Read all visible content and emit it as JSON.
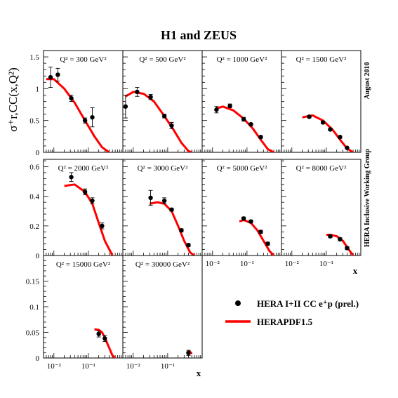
{
  "figure": {
    "title": "H1 and ZEUS",
    "side_note_top": "August 2010",
    "side_note_bottom": "HERA Inclusive Working Group",
    "ylabel": "σ⁺r,CC(x,Q²)",
    "xlabel": "x",
    "colors": {
      "data": "#000000",
      "fit": "#ff0000",
      "frame": "#000000"
    }
  },
  "legend": {
    "data_label": "HERA I+II CC e⁺p (prel.)",
    "fit_label": "HERAPDF1.5",
    "placement": "bottom-right"
  },
  "chart_data": [
    {
      "type": "scatter",
      "title": "Q² = 300 GeV²",
      "xscale": "log",
      "xlim": [
        0.005,
        1
      ],
      "ylim": [
        0,
        1.6
      ],
      "yticks": [
        "0",
        "0.5",
        "1",
        "1.5"
      ],
      "xticks": [],
      "series": [
        {
          "name": "HERA I+II CC e⁺p (prel.)",
          "x": [
            0.008,
            0.013,
            0.032,
            0.08,
            0.13
          ],
          "y": [
            1.18,
            1.22,
            0.85,
            0.5,
            0.55
          ],
          "err": [
            0.16,
            0.1,
            0.05,
            0.04,
            0.15
          ]
        },
        {
          "name": "HERAPDF1.5",
          "x": [
            0.006,
            0.01,
            0.02,
            0.04,
            0.08,
            0.15,
            0.25,
            0.4
          ],
          "y": [
            1.15,
            1.15,
            1.0,
            0.78,
            0.5,
            0.25,
            0.08,
            0.0
          ]
        }
      ]
    },
    {
      "type": "scatter",
      "title": "Q² = 500 GeV²",
      "xscale": "log",
      "xlim": [
        0.005,
        1
      ],
      "ylim": [
        0,
        1.6
      ],
      "yticks": [],
      "xticks": [],
      "series": [
        {
          "name": "HERA I+II CC e⁺p (prel.)",
          "x": [
            0.006,
            0.013,
            0.032,
            0.08,
            0.13
          ],
          "y": [
            0.72,
            0.95,
            0.87,
            0.57,
            0.42
          ],
          "err": [
            0.18,
            0.07,
            0.04,
            0.03,
            0.05
          ]
        },
        {
          "name": "HERAPDF1.5",
          "x": [
            0.006,
            0.01,
            0.02,
            0.04,
            0.08,
            0.15,
            0.25,
            0.4,
            0.5
          ],
          "y": [
            0.88,
            0.95,
            0.92,
            0.8,
            0.57,
            0.35,
            0.15,
            0.02,
            0.0
          ]
        }
      ]
    },
    {
      "type": "scatter",
      "title": "Q² = 1000 GeV²",
      "xscale": "log",
      "xlim": [
        0.005,
        1
      ],
      "ylim": [
        0,
        1.6
      ],
      "yticks": [],
      "xticks": [],
      "series": [
        {
          "name": "HERA I+II CC e⁺p (prel.)",
          "x": [
            0.013,
            0.032,
            0.08,
            0.13,
            0.25
          ],
          "y": [
            0.67,
            0.73,
            0.52,
            0.44,
            0.24
          ],
          "err": [
            0.05,
            0.03,
            0.03,
            0.02,
            0.02
          ]
        },
        {
          "name": "HERAPDF1.5",
          "x": [
            0.013,
            0.02,
            0.04,
            0.08,
            0.15,
            0.25,
            0.4,
            0.6
          ],
          "y": [
            0.69,
            0.72,
            0.66,
            0.53,
            0.37,
            0.2,
            0.05,
            0.0
          ]
        }
      ]
    },
    {
      "type": "scatter",
      "title": "Q² = 1500 GeV²",
      "xscale": "log",
      "xlim": [
        0.005,
        1
      ],
      "ylim": [
        0,
        1.6
      ],
      "yticks": [],
      "xticks": [],
      "series": [
        {
          "name": "HERA I+II CC e⁺p (prel.)",
          "x": [
            0.032,
            0.08,
            0.13,
            0.25,
            0.4
          ],
          "y": [
            0.56,
            0.47,
            0.36,
            0.24,
            0.07
          ],
          "err": [
            0.02,
            0.02,
            0.02,
            0.02,
            0.01
          ]
        },
        {
          "name": "HERAPDF1.5",
          "x": [
            0.02,
            0.04,
            0.08,
            0.15,
            0.25,
            0.4,
            0.6
          ],
          "y": [
            0.55,
            0.58,
            0.5,
            0.36,
            0.2,
            0.06,
            0.0
          ]
        }
      ]
    },
    {
      "type": "scatter",
      "title": "Q² = 2000 GeV²",
      "xscale": "log",
      "xlim": [
        0.005,
        1
      ],
      "ylim": [
        0,
        0.65
      ],
      "yticks": [
        "0",
        "0.2",
        "0.4",
        "0.6"
      ],
      "xticks": [],
      "series": [
        {
          "name": "HERA I+II CC e⁺p (prel.)",
          "x": [
            0.032,
            0.08,
            0.13,
            0.25
          ],
          "y": [
            0.53,
            0.43,
            0.37,
            0.2
          ],
          "err": [
            0.03,
            0.02,
            0.02,
            0.02
          ]
        },
        {
          "name": "HERAPDF1.5",
          "x": [
            0.02,
            0.04,
            0.08,
            0.13,
            0.2,
            0.3,
            0.5
          ],
          "y": [
            0.47,
            0.48,
            0.43,
            0.35,
            0.22,
            0.1,
            0.0
          ]
        }
      ]
    },
    {
      "type": "scatter",
      "title": "Q² = 3000 GeV²",
      "xscale": "log",
      "xlim": [
        0.005,
        1
      ],
      "ylim": [
        0,
        0.65
      ],
      "yticks": [],
      "xticks": [],
      "series": [
        {
          "name": "HERA I+II CC e⁺p (prel.)",
          "x": [
            0.032,
            0.08,
            0.13,
            0.25,
            0.4
          ],
          "y": [
            0.39,
            0.37,
            0.31,
            0.17,
            0.07
          ],
          "err": [
            0.05,
            0.02,
            0.01,
            0.01,
            0.01
          ]
        },
        {
          "name": "HERAPDF1.5",
          "x": [
            0.03,
            0.05,
            0.08,
            0.13,
            0.2,
            0.3,
            0.45,
            0.6
          ],
          "y": [
            0.35,
            0.36,
            0.35,
            0.3,
            0.2,
            0.1,
            0.02,
            0.0
          ]
        }
      ]
    },
    {
      "type": "scatter",
      "title": "Q² = 5000 GeV²",
      "xscale": "log",
      "xlim": [
        0.005,
        1
      ],
      "ylim": [
        0,
        0.65
      ],
      "yticks": [],
      "xticks": [
        "10⁻²",
        "10⁻¹"
      ],
      "series": [
        {
          "name": "HERA I+II CC e⁺p (prel.)",
          "x": [
            0.08,
            0.13,
            0.25,
            0.4
          ],
          "y": [
            0.25,
            0.23,
            0.16,
            0.08
          ],
          "err": [
            0.01,
            0.01,
            0.01,
            0.01
          ]
        },
        {
          "name": "HERAPDF1.5",
          "x": [
            0.06,
            0.08,
            0.13,
            0.2,
            0.3,
            0.45,
            0.6
          ],
          "y": [
            0.23,
            0.24,
            0.22,
            0.17,
            0.1,
            0.03,
            0.0
          ]
        }
      ]
    },
    {
      "type": "scatter",
      "title": "Q² = 8000 GeV²",
      "xscale": "log",
      "xlim": [
        0.005,
        1
      ],
      "ylim": [
        0,
        0.65
      ],
      "yticks": [],
      "xticks": [
        "10⁻²",
        "10⁻¹"
      ],
      "series": [
        {
          "name": "HERA I+II CC e⁺p (prel.)",
          "x": [
            0.13,
            0.25,
            0.4
          ],
          "y": [
            0.13,
            0.11,
            0.05
          ],
          "err": [
            0.01,
            0.01,
            0.01
          ]
        },
        {
          "name": "HERAPDF1.5",
          "x": [
            0.1,
            0.13,
            0.2,
            0.3,
            0.45,
            0.6
          ],
          "y": [
            0.14,
            0.14,
            0.13,
            0.1,
            0.04,
            0.0
          ]
        }
      ]
    },
    {
      "type": "scatter",
      "title": "Q² = 15000 GeV²",
      "xscale": "log",
      "xlim": [
        0.005,
        1
      ],
      "ylim": [
        0,
        0.2
      ],
      "yticks": [
        "0",
        "0.05",
        "0.1",
        "0.15"
      ],
      "xticks": [
        "10⁻²",
        "10⁻¹"
      ],
      "series": [
        {
          "name": "HERA I+II CC e⁺p (prel.)",
          "x": [
            0.2,
            0.3
          ],
          "y": [
            0.047,
            0.038
          ],
          "err": [
            0.006,
            0.006
          ]
        },
        {
          "name": "HERAPDF1.5",
          "x": [
            0.15,
            0.2,
            0.25,
            0.3,
            0.4,
            0.5,
            0.6
          ],
          "y": [
            0.056,
            0.055,
            0.05,
            0.04,
            0.02,
            0.005,
            0.0
          ]
        }
      ]
    },
    {
      "type": "scatter",
      "title": "Q² = 30000 GeV²",
      "xscale": "log",
      "xlim": [
        0.005,
        1
      ],
      "ylim": [
        0,
        0.2
      ],
      "yticks": [],
      "xticks": [
        "10⁻²",
        "10⁻¹"
      ],
      "series": [
        {
          "name": "HERA I+II CC e⁺p (prel.)",
          "x": [
            0.4
          ],
          "y": [
            0.01
          ],
          "err": [
            0.005
          ]
        },
        {
          "name": "HERAPDF1.5",
          "x": [
            0.4,
            0.45,
            0.5
          ],
          "y": [
            0.013,
            0.012,
            0.008
          ]
        }
      ]
    }
  ]
}
